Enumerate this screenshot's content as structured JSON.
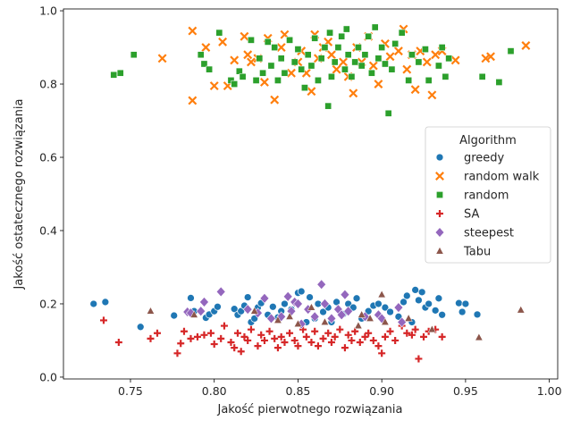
{
  "chart_data": {
    "type": "scatter",
    "xlabel": "Jakość pierwotnego rozwiązania",
    "ylabel": "Jakość ostatecznego rozwiązania",
    "xlim": [
      0.71,
      1.005
    ],
    "ylim": [
      -0.005,
      1.005
    ],
    "xticks": [
      "0.75",
      "0.80",
      "0.85",
      "0.90",
      "0.95",
      "1.00"
    ],
    "yticks": [
      "0.0",
      "0.2",
      "0.4",
      "0.6",
      "0.8",
      "1.0"
    ],
    "grid": false,
    "legend": {
      "title": "Algorithm",
      "placement": "right",
      "entries": [
        "greedy",
        "random walk",
        "random",
        "SA",
        "steepest",
        "Tabu"
      ]
    },
    "series": [
      {
        "name": "greedy",
        "marker": "circle",
        "color": "#1f77b4",
        "points": [
          [
            0.728,
            0.2
          ],
          [
            0.735,
            0.205
          ],
          [
            0.756,
            0.137
          ],
          [
            0.776,
            0.168
          ],
          [
            0.786,
            0.216
          ],
          [
            0.788,
            0.18
          ],
          [
            0.795,
            0.162
          ],
          [
            0.797,
            0.171
          ],
          [
            0.8,
            0.18
          ],
          [
            0.802,
            0.192
          ],
          [
            0.812,
            0.186
          ],
          [
            0.814,
            0.17
          ],
          [
            0.816,
            0.18
          ],
          [
            0.818,
            0.195
          ],
          [
            0.82,
            0.218
          ],
          [
            0.822,
            0.15
          ],
          [
            0.824,
            0.16
          ],
          [
            0.826,
            0.19
          ],
          [
            0.828,
            0.202
          ],
          [
            0.832,
            0.17
          ],
          [
            0.835,
            0.192
          ],
          [
            0.838,
            0.163
          ],
          [
            0.84,
            0.18
          ],
          [
            0.842,
            0.2
          ],
          [
            0.846,
            0.185
          ],
          [
            0.85,
            0.23
          ],
          [
            0.852,
            0.234
          ],
          [
            0.855,
            0.15
          ],
          [
            0.857,
            0.218
          ],
          [
            0.86,
            0.16
          ],
          [
            0.862,
            0.2
          ],
          [
            0.865,
            0.178
          ],
          [
            0.868,
            0.19
          ],
          [
            0.87,
            0.15
          ],
          [
            0.873,
            0.205
          ],
          [
            0.877,
            0.172
          ],
          [
            0.88,
            0.2
          ],
          [
            0.883,
            0.19
          ],
          [
            0.885,
            0.215
          ],
          [
            0.888,
            0.16
          ],
          [
            0.892,
            0.18
          ],
          [
            0.895,
            0.195
          ],
          [
            0.898,
            0.2
          ],
          [
            0.902,
            0.19
          ],
          [
            0.905,
            0.178
          ],
          [
            0.91,
            0.165
          ],
          [
            0.913,
            0.205
          ],
          [
            0.915,
            0.222
          ],
          [
            0.918,
            0.15
          ],
          [
            0.92,
            0.238
          ],
          [
            0.922,
            0.21
          ],
          [
            0.924,
            0.232
          ],
          [
            0.926,
            0.19
          ],
          [
            0.928,
            0.2
          ],
          [
            0.932,
            0.182
          ],
          [
            0.934,
            0.215
          ],
          [
            0.936,
            0.17
          ],
          [
            0.946,
            0.202
          ],
          [
            0.948,
            0.178
          ],
          [
            0.95,
            0.2
          ],
          [
            0.957,
            0.171
          ]
        ]
      },
      {
        "name": "random walk",
        "marker": "x",
        "color": "#ff7f0e",
        "points": [
          [
            0.769,
            0.87
          ],
          [
            0.787,
            0.945
          ],
          [
            0.787,
            0.755
          ],
          [
            0.795,
            0.9
          ],
          [
            0.8,
            0.795
          ],
          [
            0.805,
            0.915
          ],
          [
            0.808,
            0.795
          ],
          [
            0.812,
            0.865
          ],
          [
            0.818,
            0.93
          ],
          [
            0.82,
            0.88
          ],
          [
            0.822,
            0.86
          ],
          [
            0.826,
            0.87
          ],
          [
            0.83,
            0.805
          ],
          [
            0.832,
            0.925
          ],
          [
            0.836,
            0.757
          ],
          [
            0.84,
            0.9
          ],
          [
            0.842,
            0.935
          ],
          [
            0.846,
            0.83
          ],
          [
            0.85,
            0.86
          ],
          [
            0.852,
            0.89
          ],
          [
            0.855,
            0.83
          ],
          [
            0.858,
            0.78
          ],
          [
            0.86,
            0.935
          ],
          [
            0.862,
            0.87
          ],
          [
            0.865,
            0.9
          ],
          [
            0.868,
            0.915
          ],
          [
            0.87,
            0.88
          ],
          [
            0.873,
            0.84
          ],
          [
            0.877,
            0.86
          ],
          [
            0.88,
            0.82
          ],
          [
            0.883,
            0.775
          ],
          [
            0.885,
            0.9
          ],
          [
            0.888,
            0.86
          ],
          [
            0.892,
            0.93
          ],
          [
            0.895,
            0.85
          ],
          [
            0.898,
            0.8
          ],
          [
            0.902,
            0.91
          ],
          [
            0.905,
            0.875
          ],
          [
            0.91,
            0.89
          ],
          [
            0.913,
            0.95
          ],
          [
            0.915,
            0.84
          ],
          [
            0.918,
            0.88
          ],
          [
            0.92,
            0.785
          ],
          [
            0.923,
            0.89
          ],
          [
            0.927,
            0.86
          ],
          [
            0.93,
            0.77
          ],
          [
            0.932,
            0.88
          ],
          [
            0.936,
            0.89
          ],
          [
            0.944,
            0.865
          ],
          [
            0.962,
            0.87
          ],
          [
            0.965,
            0.875
          ],
          [
            0.986,
            0.905
          ]
        ]
      },
      {
        "name": "random",
        "marker": "square",
        "color": "#2ca02c",
        "points": [
          [
            0.74,
            0.825
          ],
          [
            0.744,
            0.83
          ],
          [
            0.752,
            0.88
          ],
          [
            0.792,
            0.88
          ],
          [
            0.794,
            0.855
          ],
          [
            0.797,
            0.84
          ],
          [
            0.803,
            0.94
          ],
          [
            0.81,
            0.81
          ],
          [
            0.812,
            0.8
          ],
          [
            0.815,
            0.835
          ],
          [
            0.817,
            0.82
          ],
          [
            0.822,
            0.92
          ],
          [
            0.825,
            0.81
          ],
          [
            0.827,
            0.87
          ],
          [
            0.829,
            0.83
          ],
          [
            0.832,
            0.915
          ],
          [
            0.834,
            0.85
          ],
          [
            0.836,
            0.9
          ],
          [
            0.838,
            0.81
          ],
          [
            0.84,
            0.87
          ],
          [
            0.842,
            0.83
          ],
          [
            0.845,
            0.92
          ],
          [
            0.848,
            0.86
          ],
          [
            0.85,
            0.895
          ],
          [
            0.852,
            0.84
          ],
          [
            0.854,
            0.79
          ],
          [
            0.856,
            0.88
          ],
          [
            0.858,
            0.85
          ],
          [
            0.86,
            0.925
          ],
          [
            0.862,
            0.81
          ],
          [
            0.864,
            0.87
          ],
          [
            0.866,
            0.9
          ],
          [
            0.868,
            0.74
          ],
          [
            0.869,
            0.94
          ],
          [
            0.87,
            0.82
          ],
          [
            0.872,
            0.86
          ],
          [
            0.874,
            0.9
          ],
          [
            0.876,
            0.93
          ],
          [
            0.878,
            0.84
          ],
          [
            0.879,
            0.95
          ],
          [
            0.88,
            0.88
          ],
          [
            0.882,
            0.82
          ],
          [
            0.884,
            0.86
          ],
          [
            0.886,
            0.9
          ],
          [
            0.888,
            0.85
          ],
          [
            0.89,
            0.88
          ],
          [
            0.892,
            0.93
          ],
          [
            0.894,
            0.83
          ],
          [
            0.896,
            0.955
          ],
          [
            0.898,
            0.87
          ],
          [
            0.9,
            0.9
          ],
          [
            0.902,
            0.855
          ],
          [
            0.904,
            0.72
          ],
          [
            0.906,
            0.84
          ],
          [
            0.908,
            0.91
          ],
          [
            0.912,
            0.94
          ],
          [
            0.916,
            0.81
          ],
          [
            0.918,
            0.88
          ],
          [
            0.922,
            0.86
          ],
          [
            0.926,
            0.895
          ],
          [
            0.928,
            0.81
          ],
          [
            0.934,
            0.85
          ],
          [
            0.936,
            0.9
          ],
          [
            0.938,
            0.82
          ],
          [
            0.94,
            0.87
          ],
          [
            0.96,
            0.82
          ],
          [
            0.97,
            0.805
          ],
          [
            0.977,
            0.89
          ]
        ]
      },
      {
        "name": "SA",
        "marker": "plus",
        "color": "#d62728",
        "points": [
          [
            0.734,
            0.155
          ],
          [
            0.743,
            0.095
          ],
          [
            0.762,
            0.105
          ],
          [
            0.766,
            0.12
          ],
          [
            0.778,
            0.065
          ],
          [
            0.78,
            0.092
          ],
          [
            0.782,
            0.125
          ],
          [
            0.786,
            0.105
          ],
          [
            0.79,
            0.11
          ],
          [
            0.794,
            0.115
          ],
          [
            0.798,
            0.12
          ],
          [
            0.8,
            0.09
          ],
          [
            0.804,
            0.105
          ],
          [
            0.806,
            0.14
          ],
          [
            0.81,
            0.095
          ],
          [
            0.812,
            0.08
          ],
          [
            0.814,
            0.12
          ],
          [
            0.816,
            0.07
          ],
          [
            0.818,
            0.11
          ],
          [
            0.82,
            0.1
          ],
          [
            0.822,
            0.13
          ],
          [
            0.826,
            0.085
          ],
          [
            0.828,
            0.115
          ],
          [
            0.83,
            0.1
          ],
          [
            0.833,
            0.125
          ],
          [
            0.836,
            0.105
          ],
          [
            0.838,
            0.08
          ],
          [
            0.84,
            0.11
          ],
          [
            0.842,
            0.095
          ],
          [
            0.845,
            0.12
          ],
          [
            0.848,
            0.1
          ],
          [
            0.85,
            0.085
          ],
          [
            0.853,
            0.13
          ],
          [
            0.855,
            0.11
          ],
          [
            0.858,
            0.095
          ],
          [
            0.86,
            0.125
          ],
          [
            0.862,
            0.085
          ],
          [
            0.865,
            0.105
          ],
          [
            0.868,
            0.12
          ],
          [
            0.87,
            0.095
          ],
          [
            0.872,
            0.11
          ],
          [
            0.875,
            0.13
          ],
          [
            0.878,
            0.08
          ],
          [
            0.88,
            0.115
          ],
          [
            0.882,
            0.1
          ],
          [
            0.884,
            0.125
          ],
          [
            0.887,
            0.095
          ],
          [
            0.89,
            0.11
          ],
          [
            0.892,
            0.12
          ],
          [
            0.895,
            0.1
          ],
          [
            0.898,
            0.085
          ],
          [
            0.9,
            0.065
          ],
          [
            0.902,
            0.11
          ],
          [
            0.905,
            0.125
          ],
          [
            0.908,
            0.1
          ],
          [
            0.912,
            0.14
          ],
          [
            0.915,
            0.12
          ],
          [
            0.918,
            0.115
          ],
          [
            0.92,
            0.13
          ],
          [
            0.922,
            0.05
          ],
          [
            0.925,
            0.11
          ],
          [
            0.928,
            0.125
          ],
          [
            0.932,
            0.13
          ],
          [
            0.936,
            0.11
          ]
        ]
      },
      {
        "name": "steepest",
        "marker": "diamond",
        "color": "#9467bd",
        "points": [
          [
            0.784,
            0.178
          ],
          [
            0.786,
            0.175
          ],
          [
            0.792,
            0.18
          ],
          [
            0.794,
            0.205
          ],
          [
            0.804,
            0.233
          ],
          [
            0.82,
            0.185
          ],
          [
            0.826,
            0.175
          ],
          [
            0.83,
            0.215
          ],
          [
            0.834,
            0.16
          ],
          [
            0.84,
            0.165
          ],
          [
            0.844,
            0.22
          ],
          [
            0.846,
            0.18
          ],
          [
            0.848,
            0.205
          ],
          [
            0.85,
            0.2
          ],
          [
            0.852,
            0.145
          ],
          [
            0.856,
            0.185
          ],
          [
            0.86,
            0.165
          ],
          [
            0.864,
            0.253
          ],
          [
            0.866,
            0.2
          ],
          [
            0.87,
            0.16
          ],
          [
            0.874,
            0.185
          ],
          [
            0.876,
            0.17
          ],
          [
            0.878,
            0.225
          ],
          [
            0.88,
            0.18
          ],
          [
            0.89,
            0.165
          ],
          [
            0.898,
            0.17
          ],
          [
            0.9,
            0.16
          ],
          [
            0.91,
            0.19
          ],
          [
            0.912,
            0.15
          ]
        ]
      },
      {
        "name": "Tabu",
        "marker": "triangle",
        "color": "#8c564b",
        "points": [
          [
            0.762,
            0.18
          ],
          [
            0.788,
            0.17
          ],
          [
            0.824,
            0.18
          ],
          [
            0.838,
            0.155
          ],
          [
            0.845,
            0.165
          ],
          [
            0.85,
            0.145
          ],
          [
            0.858,
            0.19
          ],
          [
            0.866,
            0.15
          ],
          [
            0.886,
            0.14
          ],
          [
            0.888,
            0.17
          ],
          [
            0.893,
            0.16
          ],
          [
            0.9,
            0.225
          ],
          [
            0.902,
            0.15
          ],
          [
            0.916,
            0.16
          ],
          [
            0.93,
            0.13
          ],
          [
            0.958,
            0.108
          ],
          [
            0.983,
            0.183
          ]
        ]
      }
    ]
  }
}
